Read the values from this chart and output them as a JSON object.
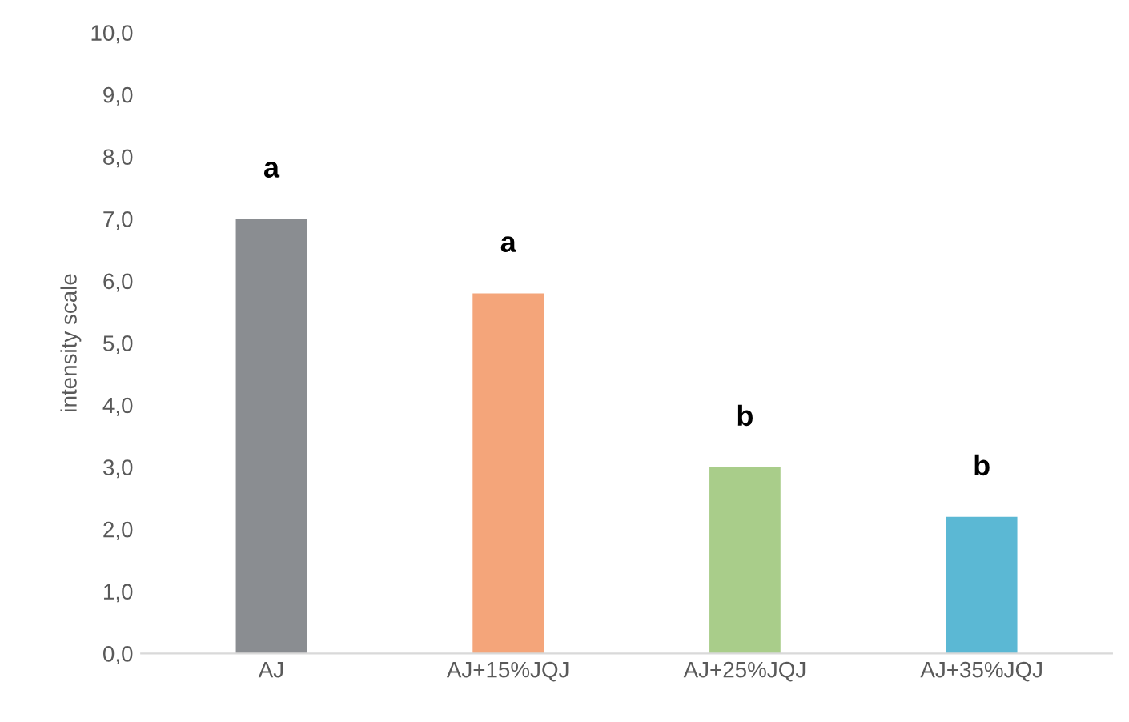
{
  "chart_data": {
    "type": "bar",
    "ylabel": "intensity scale",
    "categories": [
      "AJ",
      "AJ+15%JQJ",
      "AJ+25%JQJ",
      "AJ+35%JQJ"
    ],
    "values": [
      7.0,
      5.8,
      3.0,
      2.2
    ],
    "colors": [
      "#8a8d91",
      "#f4a57a",
      "#a9cd8a",
      "#5bb8d4"
    ],
    "ylim": [
      0,
      10
    ],
    "yticks": [
      {
        "value": 0,
        "label": "0,0"
      },
      {
        "value": 1,
        "label": "1,0"
      },
      {
        "value": 2,
        "label": "2,0"
      },
      {
        "value": 3,
        "label": "3,0"
      },
      {
        "value": 4,
        "label": "4,0"
      },
      {
        "value": 5,
        "label": "5,0"
      },
      {
        "value": 6,
        "label": "6,0"
      },
      {
        "value": 7,
        "label": "7,0"
      },
      {
        "value": 8,
        "label": "8,0"
      },
      {
        "value": 9,
        "label": "9,0"
      },
      {
        "value": 10,
        "label": "10,0"
      }
    ],
    "grid": false,
    "annotations": [
      {
        "text": "a",
        "x": "AJ",
        "y": 7.0
      },
      {
        "text": "a",
        "x": "AJ+15%JQJ",
        "y": 5.8
      },
      {
        "text": "b",
        "x": "AJ+25%JQJ",
        "y": 3.0
      },
      {
        "text": "b",
        "x": "AJ+35%JQJ",
        "y": 2.2
      }
    ]
  }
}
